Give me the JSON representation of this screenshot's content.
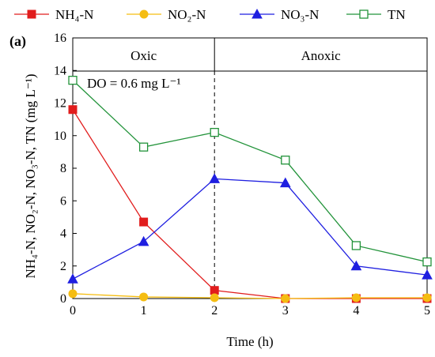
{
  "panel_label": "(a)",
  "chart_data": {
    "type": "line",
    "xlabel": "Time (h)",
    "ylabel": "NH₄-N, NO₂-N, NO₃-N, TN (mg L⁻¹)",
    "xlim": [
      0,
      5
    ],
    "ylim": [
      0,
      16
    ],
    "x_ticks": [
      0,
      1,
      2,
      3,
      4,
      5
    ],
    "y_ticks": [
      0,
      2,
      4,
      6,
      8,
      10,
      12,
      14,
      16
    ],
    "grid": false,
    "legend_position": "top",
    "phase_divider_x": 2,
    "phases": [
      {
        "label": "Oxic",
        "x_range": [
          0,
          2
        ]
      },
      {
        "label": "Anoxic",
        "x_range": [
          2,
          5
        ]
      }
    ],
    "annotation": "DO = 0.6 mg L⁻¹",
    "x": [
      0,
      1,
      2,
      3,
      4,
      5
    ],
    "series": [
      {
        "name": "NH₄-N",
        "marker": "square-filled",
        "color": "#e11d1d",
        "values": [
          11.6,
          4.7,
          0.5,
          0.0,
          0.0,
          0.0
        ]
      },
      {
        "name": "NO₂-N",
        "marker": "circle-filled",
        "color": "#f5bd12",
        "values": [
          0.3,
          0.1,
          0.05,
          0.0,
          0.05,
          0.05
        ]
      },
      {
        "name": "NO₃-N",
        "marker": "triangle-filled",
        "color": "#1f1fe0",
        "values": [
          1.2,
          3.5,
          7.35,
          7.1,
          2.0,
          1.45
        ]
      },
      {
        "name": "TN",
        "marker": "square-open",
        "color": "#22933a",
        "values": [
          13.4,
          9.3,
          10.2,
          8.5,
          3.25,
          2.25
        ]
      }
    ]
  }
}
